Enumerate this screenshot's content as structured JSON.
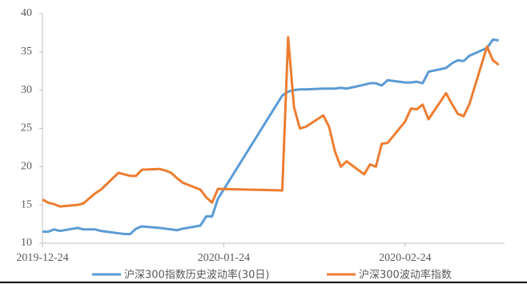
{
  "chart_data": {
    "type": "line",
    "x": [
      "2019-12-24",
      "2019-12-25",
      "2019-12-26",
      "2019-12-27",
      "2019-12-30",
      "2019-12-31",
      "2020-01-02",
      "2020-01-03",
      "2020-01-06",
      "2020-01-07",
      "2020-01-08",
      "2020-01-09",
      "2020-01-10",
      "2020-01-13",
      "2020-01-14",
      "2020-01-15",
      "2020-01-16",
      "2020-01-17",
      "2020-01-20",
      "2020-01-21",
      "2020-01-22",
      "2020-01-23",
      "2020-02-03",
      "2020-02-04",
      "2020-02-05",
      "2020-02-06",
      "2020-02-07",
      "2020-02-10",
      "2020-02-11",
      "2020-02-12",
      "2020-02-13",
      "2020-02-14",
      "2020-02-17",
      "2020-02-18",
      "2020-02-19",
      "2020-02-20",
      "2020-02-21",
      "2020-02-24",
      "2020-02-25",
      "2020-02-26",
      "2020-02-27",
      "2020-02-28",
      "2020-03-02",
      "2020-03-03",
      "2020-03-04",
      "2020-03-05",
      "2020-03-06",
      "2020-03-09",
      "2020-03-10",
      "2020-03-11"
    ],
    "series": [
      {
        "name": "沪深300指数历史波动率(30日)",
        "color": "#5b9bd5",
        "values": [
          11.5,
          11.5,
          11.8,
          11.6,
          12.0,
          11.8,
          11.8,
          11.6,
          11.3,
          11.2,
          11.2,
          11.9,
          12.2,
          12.0,
          11.9,
          11.8,
          11.7,
          11.9,
          12.3,
          13.5,
          13.5,
          15.8,
          29.3,
          29.8,
          30.0,
          30.1,
          30.1,
          30.2,
          30.2,
          30.2,
          30.3,
          30.2,
          30.7,
          30.9,
          30.9,
          30.6,
          31.3,
          31.0,
          31.0,
          31.1,
          30.9,
          32.4,
          32.9,
          33.5,
          33.9,
          33.8,
          34.5,
          35.5,
          36.6,
          36.5
        ]
      },
      {
        "name": "沪深300波动率指数",
        "color": "#ed7d31",
        "values": [
          15.7,
          15.3,
          15.1,
          14.8,
          15.0,
          15.2,
          16.5,
          17.0,
          19.2,
          19.0,
          18.8,
          18.8,
          19.6,
          19.7,
          19.5,
          19.2,
          18.5,
          17.9,
          17.0,
          16.0,
          15.3,
          17.1,
          16.9,
          36.9,
          27.8,
          25.0,
          25.2,
          26.7,
          25.2,
          22.0,
          20.0,
          20.7,
          19.0,
          20.3,
          20.0,
          23.0,
          23.1,
          25.9,
          27.6,
          27.5,
          28.1,
          26.2,
          29.6,
          28.2,
          26.9,
          26.6,
          28.2,
          35.7,
          33.9,
          33.3
        ]
      }
    ],
    "xlim": [
      "2019-12-24",
      "2020-03-12"
    ],
    "xticks": [
      "2019-12-24",
      "2020-01-24",
      "2020-02-24"
    ],
    "ylim": [
      10,
      40
    ],
    "yticks": [
      10,
      15,
      20,
      25,
      30,
      35,
      40
    ]
  }
}
